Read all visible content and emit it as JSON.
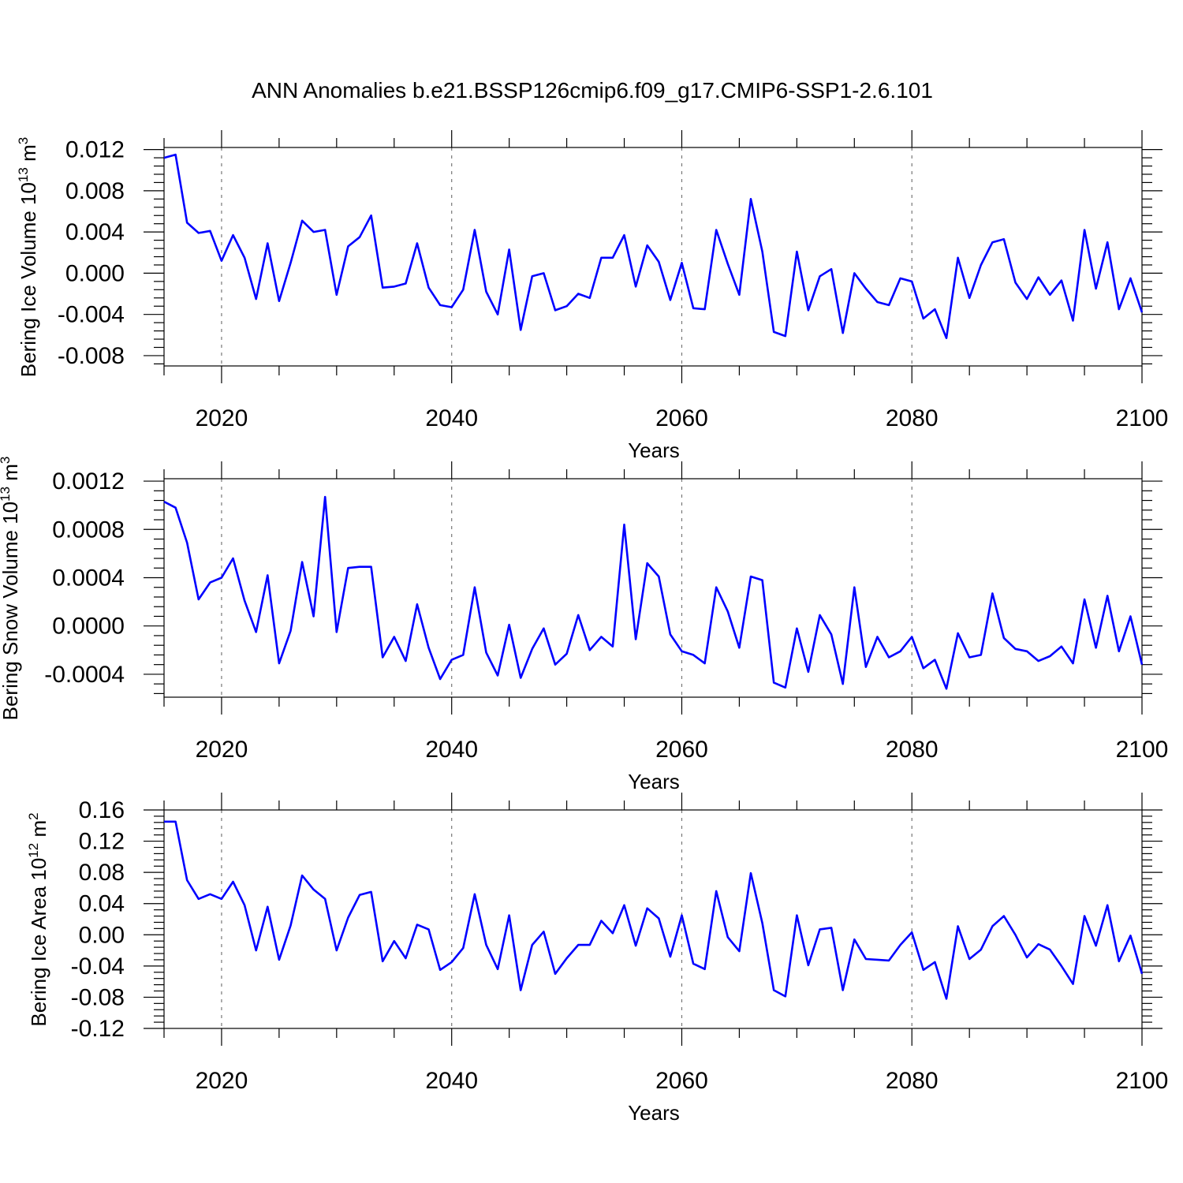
{
  "title": "ANN Anomalies b.e21.BSSP126cmip6.f09_g17.CMIP6-SSP1-2.6.101",
  "colors": {
    "series": "#0000ff",
    "frame": "#000000",
    "grid": "#777777"
  },
  "chart_data": [
    {
      "type": "line",
      "xlabel": "Years",
      "ylabel": "Bering Ice Volume 10",
      "ylabel_exp": "13",
      "ylabel_unit": " m",
      "ylabel_unit_exp": "3",
      "xlim": [
        2015,
        2100
      ],
      "ylim": [
        -0.009,
        0.0122
      ],
      "xticks": [
        2020,
        2040,
        2060,
        2080,
        2100
      ],
      "xtick_labels": [
        "2020",
        "2040",
        "2060",
        "2080",
        "2100"
      ],
      "yticks": [
        0.012,
        0.008,
        0.004,
        0.0,
        -0.004,
        -0.008
      ],
      "ytick_labels": [
        "0.012",
        "0.008",
        "0.004",
        "0.000",
        "-0.004",
        "-0.008"
      ],
      "grid": "vertical dashed at major x ticks",
      "x_start": 2015,
      "values": [
        0.0112,
        0.0115,
        0.0049,
        0.0039,
        0.0041,
        0.0012,
        0.0037,
        0.0015,
        -0.0025,
        0.0029,
        -0.0027,
        0.001,
        0.0051,
        0.004,
        0.0042,
        -0.0021,
        0.0026,
        0.0035,
        0.0056,
        -0.0014,
        -0.0013,
        -0.001,
        0.0029,
        -0.0014,
        -0.0031,
        -0.0033,
        -0.0016,
        0.0042,
        -0.0018,
        -0.004,
        0.0023,
        -0.0055,
        -0.0003,
        0.0,
        -0.0036,
        -0.0032,
        -0.002,
        -0.0024,
        0.0015,
        0.0015,
        0.0037,
        -0.0013,
        0.0027,
        0.0011,
        -0.0026,
        0.001,
        -0.0034,
        -0.0035,
        0.0042,
        0.0009,
        -0.0021,
        0.0072,
        0.0021,
        -0.0057,
        -0.0061,
        0.0021,
        -0.0036,
        -0.0003,
        0.0004,
        -0.0058,
        0.0,
        -0.0015,
        -0.0028,
        -0.0031,
        -0.0005,
        -0.0008,
        -0.0044,
        -0.0035,
        -0.0063,
        0.0015,
        -0.0024,
        0.0008,
        0.003,
        0.0033,
        -0.0009,
        -0.0025,
        -0.0004,
        -0.0021,
        -0.0007,
        -0.0046,
        0.0042,
        -0.0015,
        0.003,
        -0.0035,
        -0.0005,
        -0.0038
      ]
    },
    {
      "type": "line",
      "xlabel": "Years",
      "ylabel": "Bering Snow Volume 10",
      "ylabel_exp": "13",
      "ylabel_unit": " m",
      "ylabel_unit_exp": "3",
      "xlim": [
        2015,
        2100
      ],
      "ylim": [
        -0.00059,
        0.00122
      ],
      "xticks": [
        2020,
        2040,
        2060,
        2080,
        2100
      ],
      "xtick_labels": [
        "2020",
        "2040",
        "2060",
        "2080",
        "2100"
      ],
      "yticks": [
        0.0012,
        0.0008,
        0.0004,
        0.0,
        -0.0004
      ],
      "ytick_labels": [
        "0.0012",
        "0.0008",
        "0.0004",
        "0.0000",
        "-0.0004"
      ],
      "grid": "vertical dashed at major x ticks",
      "x_start": 2015,
      "values": [
        0.00103,
        0.00098,
        0.00069,
        0.00022,
        0.00036,
        0.0004,
        0.00056,
        0.00021,
        -5e-05,
        0.00042,
        -0.00031,
        -4e-05,
        0.00053,
        8e-05,
        0.00107,
        -5e-05,
        0.00048,
        0.00049,
        0.00049,
        -0.00026,
        -9e-05,
        -0.00029,
        0.00018,
        -0.00018,
        -0.00044,
        -0.00028,
        -0.00024,
        0.00032,
        -0.00022,
        -0.00041,
        1e-05,
        -0.00043,
        -0.00019,
        -2e-05,
        -0.00032,
        -0.00023,
        9e-05,
        -0.0002,
        -9e-05,
        -0.00017,
        0.00084,
        -0.00011,
        0.00052,
        0.00041,
        -7e-05,
        -0.00021,
        -0.00024,
        -0.00031,
        0.00032,
        0.00012,
        -0.00018,
        0.00041,
        0.00038,
        -0.00047,
        -0.00051,
        -2e-05,
        -0.00038,
        9e-05,
        -7e-05,
        -0.00048,
        0.00032,
        -0.00034,
        -9e-05,
        -0.00026,
        -0.00021,
        -9e-05,
        -0.00035,
        -0.00028,
        -0.00052,
        -6e-05,
        -0.00026,
        -0.00024,
        0.00027,
        -0.0001,
        -0.00019,
        -0.00021,
        -0.00029,
        -0.00025,
        -0.00017,
        -0.00031,
        0.00022,
        -0.00018,
        0.00025,
        -0.00021,
        8e-05,
        -0.00032
      ]
    },
    {
      "type": "line",
      "xlabel": "Years",
      "ylabel": "Bering Ice Area 10",
      "ylabel_exp": "12",
      "ylabel_unit": " m",
      "ylabel_unit_exp": "2",
      "xlim": [
        2015,
        2100
      ],
      "ylim": [
        -0.12,
        0.16
      ],
      "xticks": [
        2020,
        2040,
        2060,
        2080,
        2100
      ],
      "xtick_labels": [
        "2020",
        "2040",
        "2060",
        "2080",
        "2100"
      ],
      "yticks": [
        0.16,
        0.12,
        0.08,
        0.04,
        0.0,
        -0.04,
        -0.08,
        -0.12
      ],
      "ytick_labels": [
        "0.16",
        "0.12",
        "0.08",
        "0.04",
        "0.00",
        "-0.04",
        "-0.08",
        "-0.12"
      ],
      "grid": "vertical dashed at major x ticks",
      "x_start": 2015,
      "values": [
        0.145,
        0.145,
        0.07,
        0.046,
        0.052,
        0.046,
        0.068,
        0.038,
        -0.02,
        0.036,
        -0.032,
        0.012,
        0.076,
        0.058,
        0.046,
        -0.02,
        0.022,
        0.051,
        0.055,
        -0.034,
        -0.008,
        -0.03,
        0.013,
        0.007,
        -0.045,
        -0.035,
        -0.017,
        0.052,
        -0.013,
        -0.044,
        0.025,
        -0.071,
        -0.013,
        0.004,
        -0.05,
        -0.03,
        -0.013,
        -0.013,
        0.018,
        0.002,
        0.038,
        -0.014,
        0.034,
        0.021,
        -0.028,
        0.025,
        -0.037,
        -0.044,
        0.056,
        -0.003,
        -0.021,
        0.079,
        0.015,
        -0.071,
        -0.079,
        0.025,
        -0.039,
        0.007,
        0.009,
        -0.071,
        -0.006,
        -0.031,
        -0.032,
        -0.033,
        -0.013,
        0.003,
        -0.045,
        -0.035,
        -0.082,
        0.011,
        -0.031,
        -0.019,
        0.011,
        0.024,
        0.0,
        -0.029,
        -0.012,
        -0.019,
        -0.04,
        -0.063,
        0.024,
        -0.014,
        0.038,
        -0.034,
        -0.001,
        -0.05
      ]
    }
  ]
}
